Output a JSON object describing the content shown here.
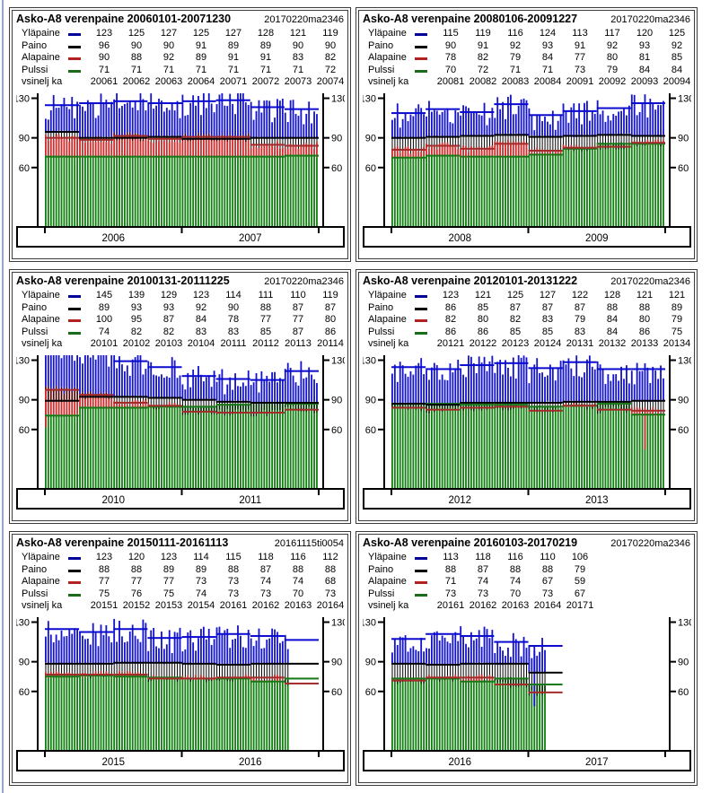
{
  "window": {
    "background": "#FFFFFF",
    "left_edge_color": "#8FA9C9"
  },
  "legend": {
    "row_labels": [
      "Yläpaine",
      "Paino",
      "Alapaine",
      "Pulssi"
    ],
    "quarter_label": "vsinelj ka"
  },
  "colors": {
    "systolic_bar": "#1414CC",
    "systolic_line": "#0B0BCF",
    "systolic_dash": "#000099",
    "weight_bar": "#000000",
    "weight_line": "#000000",
    "weight_dash": "#000000",
    "diastolic_bar": "#CE2B2B",
    "diastolic_line": "#A52A2A",
    "diastolic_dash": "#B22222",
    "pulse_bar": "#108010",
    "pulse_line": "#157815",
    "pulse_dash": "#1A6B1A",
    "axis": "#000000"
  },
  "y_ticks": [
    "130",
    "90",
    "60"
  ],
  "chart_data": [
    {
      "type": "bar",
      "title": "Asko-A8 verenpaine 20060101-20071230",
      "timestamp": "20170220ma2346",
      "quarters": [
        "20061",
        "20062",
        "20063",
        "20064",
        "20071",
        "20072",
        "20073",
        "20074"
      ],
      "series": [
        {
          "name": "Yläpaine",
          "values": [
            123,
            125,
            127,
            125,
            127,
            128,
            121,
            119
          ]
        },
        {
          "name": "Paino",
          "values": [
            96,
            90,
            90,
            91,
            89,
            89,
            90,
            90
          ]
        },
        {
          "name": "Alapaine",
          "values": [
            90,
            88,
            92,
            89,
            91,
            91,
            83,
            82
          ]
        },
        {
          "name": "Pulssi",
          "values": [
            71,
            71,
            71,
            71,
            71,
            71,
            71,
            72
          ]
        }
      ],
      "x_year_labels": [
        "2006",
        "2007"
      ],
      "ylim": [
        0,
        135
      ],
      "y_tick_values": [
        130,
        90,
        60
      ],
      "weeks_total": 104,
      "weeks_with_data": 104,
      "anomalies": []
    },
    {
      "type": "bar",
      "title": "Asko-A8 verenpaine 20080106-20091227",
      "timestamp": "20170220ma2346",
      "quarters": [
        "20081",
        "20082",
        "20083",
        "20084",
        "20091",
        "20092",
        "20093",
        "20094"
      ],
      "series": [
        {
          "name": "Yläpaine",
          "values": [
            115,
            119,
            116,
            124,
            113,
            117,
            120,
            125
          ]
        },
        {
          "name": "Paino",
          "values": [
            90,
            91,
            92,
            93,
            91,
            92,
            93,
            92
          ]
        },
        {
          "name": "Alapaine",
          "values": [
            78,
            82,
            79,
            84,
            77,
            80,
            81,
            85
          ]
        },
        {
          "name": "Pulssi",
          "values": [
            70,
            72,
            71,
            71,
            73,
            79,
            84,
            84
          ]
        }
      ],
      "x_year_labels": [
        "2008",
        "2009"
      ],
      "ylim": [
        0,
        135
      ],
      "y_tick_values": [
        130,
        90,
        60
      ],
      "weeks_total": 104,
      "weeks_with_data": 104,
      "anomalies": []
    },
    {
      "type": "bar",
      "title": "Asko-A8 verenpaine 20100131-20111225",
      "timestamp": "20170220ma2346",
      "quarters": [
        "20101",
        "20102",
        "20103",
        "20104",
        "20111",
        "20112",
        "20113",
        "20114"
      ],
      "series": [
        {
          "name": "Yläpaine",
          "values": [
            145,
            139,
            129,
            123,
            114,
            111,
            110,
            119
          ]
        },
        {
          "name": "Paino",
          "values": [
            89,
            93,
            93,
            92,
            90,
            88,
            87,
            87
          ]
        },
        {
          "name": "Alapaine",
          "values": [
            100,
            95,
            87,
            84,
            78,
            77,
            77,
            80
          ]
        },
        {
          "name": "Pulssi",
          "values": [
            74,
            82,
            82,
            83,
            83,
            85,
            87,
            86
          ]
        }
      ],
      "x_year_labels": [
        "2010",
        "2011"
      ],
      "ylim": [
        0,
        135
      ],
      "y_tick_values": [
        130,
        90,
        60
      ],
      "weeks_total": 104,
      "weeks_with_data": 104,
      "anomalies": [
        {
          "week": 0,
          "series": "Alapaine",
          "value": 62
        }
      ]
    },
    {
      "type": "bar",
      "title": "Asko-A8 verenpaine 20120101-20131222",
      "timestamp": "20170220ma2346",
      "quarters": [
        "20121",
        "20122",
        "20123",
        "20124",
        "20131",
        "20132",
        "20133",
        "20134"
      ],
      "series": [
        {
          "name": "Yläpaine",
          "values": [
            123,
            121,
            125,
            127,
            122,
            128,
            121,
            121
          ]
        },
        {
          "name": "Paino",
          "values": [
            86,
            85,
            87,
            87,
            87,
            88,
            88,
            89
          ]
        },
        {
          "name": "Alapaine",
          "values": [
            82,
            80,
            82,
            83,
            79,
            84,
            80,
            79
          ]
        },
        {
          "name": "Pulssi",
          "values": [
            86,
            86,
            85,
            85,
            83,
            84,
            86,
            75
          ]
        }
      ],
      "x_year_labels": [
        "2012",
        "2013"
      ],
      "ylim": [
        0,
        135
      ],
      "y_tick_values": [
        130,
        90,
        60
      ],
      "weeks_total": 104,
      "weeks_with_data": 104,
      "anomalies": [
        {
          "week": 96,
          "series": "Alapaine",
          "value": 40
        }
      ]
    },
    {
      "type": "bar",
      "title": "Asko-A8 verenpaine 20150111-20161113",
      "timestamp": "20161115ti0054",
      "quarters": [
        "20151",
        "20152",
        "20153",
        "20154",
        "20161",
        "20162",
        "20163",
        "20164"
      ],
      "series": [
        {
          "name": "Yläpaine",
          "values": [
            123,
            120,
            123,
            114,
            115,
            118,
            116,
            112
          ]
        },
        {
          "name": "Paino",
          "values": [
            88,
            88,
            89,
            89,
            88,
            87,
            88,
            88
          ]
        },
        {
          "name": "Alapaine",
          "values": [
            77,
            77,
            77,
            73,
            73,
            74,
            74,
            68
          ]
        },
        {
          "name": "Pulssi",
          "values": [
            75,
            76,
            75,
            74,
            73,
            73,
            70,
            73
          ]
        }
      ],
      "x_year_labels": [
        "2015",
        "2016"
      ],
      "ylim": [
        0,
        135
      ],
      "y_tick_values": [
        130,
        90,
        60
      ],
      "weeks_total": 104,
      "weeks_with_data": 93,
      "anomalies": []
    },
    {
      "type": "bar",
      "title": "Asko-A8 verenpaine 20160103-20170219",
      "timestamp": "20170220ma2346",
      "quarters": [
        "20161",
        "20162",
        "20163",
        "20164",
        "20171"
      ],
      "series": [
        {
          "name": "Yläpaine",
          "values": [
            113,
            118,
            116,
            110,
            106
          ]
        },
        {
          "name": "Paino",
          "values": [
            88,
            87,
            88,
            88,
            79
          ]
        },
        {
          "name": "Alapaine",
          "values": [
            71,
            74,
            74,
            67,
            59
          ]
        },
        {
          "name": "Pulssi",
          "values": [
            73,
            73,
            70,
            73,
            67
          ]
        }
      ],
      "x_year_labels": [
        "2016",
        "2017"
      ],
      "ylim": [
        0,
        135
      ],
      "y_tick_values": [
        130,
        90,
        60
      ],
      "weeks_total": 104,
      "weeks_with_data": 59,
      "anomalies": [
        {
          "week": 54,
          "series": "Yläpaine",
          "value": 45
        }
      ]
    }
  ]
}
